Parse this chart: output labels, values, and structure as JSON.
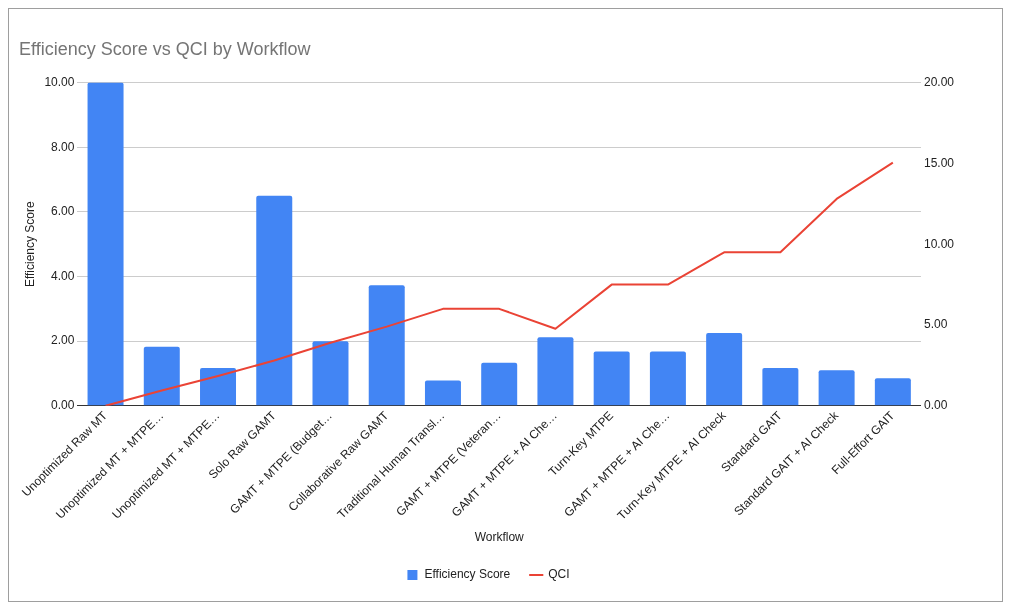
{
  "chart_data": {
    "type": "bar",
    "title": "Efficiency Score vs QCI by Workflow",
    "xlabel": "Workflow",
    "ylabel": "Efficiency Score",
    "categories": [
      "Unoptimized Raw MT",
      "Unoptimized MT + MTPE…",
      "Unoptimized MT + MTPE…",
      "Solo Raw GAMT",
      "GAMT + MTPE (Budget…",
      "Collaborative Raw GAMT",
      "Traditional Human Transl…",
      "GAMT + MTPE (Veteran…",
      "GAMT + MTPE + AI Che…",
      "Turn-Key MTPE",
      "GAMT + MTPE + AI Che…",
      "Turn-Key MTPE + AI Check",
      "Standard GAIT",
      "Standard GAIT + AI Check",
      "Full-Effort GAIT"
    ],
    "series": [
      {
        "name": "Efficiency Score",
        "color": "#4285f4",
        "values": [
          10,
          1.83,
          1.17,
          6.5,
          2.0,
          3.73,
          0.78,
          1.33,
          2.12,
          1.68,
          1.68,
          2.25,
          1.17,
          1.1,
          0.85
        ]
      },
      {
        "name": "QCI",
        "type": "line",
        "axis": "y2",
        "color": "#ea4335",
        "values": [
          0,
          0.95,
          1.85,
          2.8,
          3.9,
          4.9,
          6.0,
          6.0,
          4.77,
          7.5,
          7.5,
          9.5,
          9.5,
          12.8,
          15.05
        ]
      }
    ],
    "ylim": [
      0,
      10
    ],
    "yticks": [
      {
        "value": 0,
        "label": "0.00"
      },
      {
        "value": 2,
        "label": "2.00"
      },
      {
        "value": 4,
        "label": "4.00"
      },
      {
        "value": 6,
        "label": "6.00"
      },
      {
        "value": 8,
        "label": "8.00"
      },
      {
        "value": 10,
        "label": "10.00"
      }
    ],
    "y2lim": [
      0,
      20
    ],
    "y2ticks": [
      {
        "value": 0,
        "label": "0.00"
      },
      {
        "value": 5,
        "label": "5.00"
      },
      {
        "value": 10,
        "label": "10.00"
      },
      {
        "value": 15,
        "label": "15.00"
      },
      {
        "value": 20,
        "label": "20.00"
      }
    ],
    "grid": "y",
    "legend": "bottom",
    "marker": "none",
    "line_style": "solid"
  }
}
